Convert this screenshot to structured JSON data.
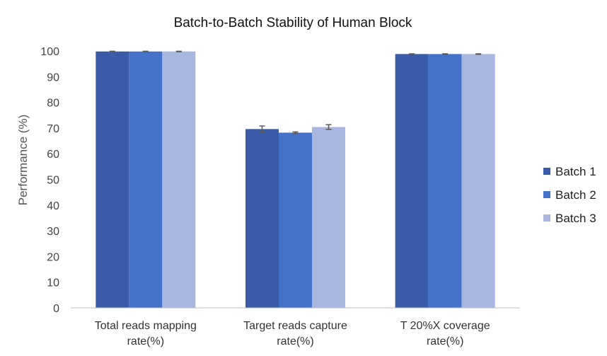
{
  "chart_data": {
    "type": "bar",
    "title": "Batch-to-Batch Stability of Human Block",
    "ylabel": "Performance (%)",
    "xlabel": "",
    "ylim": [
      0,
      100
    ],
    "yticks": [
      0,
      10,
      20,
      30,
      40,
      50,
      60,
      70,
      80,
      90,
      100
    ],
    "grid": false,
    "legend_position": "right",
    "categories": [
      [
        "Total reads mapping",
        "rate(%)"
      ],
      [
        "Target reads capture",
        "rate(%)"
      ],
      [
        "T 20%X coverage",
        "rate(%)"
      ]
    ],
    "series": [
      {
        "name": "Batch 1",
        "color": "#3a5ca8",
        "values": [
          99.8,
          69.6,
          98.8
        ],
        "errors": [
          0.1,
          1.2,
          0.1
        ]
      },
      {
        "name": "Batch 2",
        "color": "#4472c9",
        "values": [
          99.8,
          68.2,
          98.8
        ],
        "errors": [
          0.1,
          0.3,
          0.1
        ]
      },
      {
        "name": "Batch 3",
        "color": "#a8b6e0",
        "values": [
          99.8,
          70.4,
          98.8
        ],
        "errors": [
          0.1,
          0.9,
          0.1
        ]
      }
    ]
  }
}
